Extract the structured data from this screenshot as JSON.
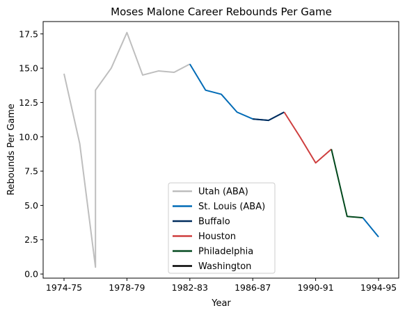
{
  "chart_data": {
    "type": "line",
    "title": "Moses Malone Career Rebounds Per Game",
    "xlabel": "Year",
    "ylabel": "Rebounds Per Game",
    "categories": [
      "1974-75",
      "1975-76",
      "1976-77",
      "1976-77",
      "1977-78",
      "1978-79",
      "1979-80",
      "1980-81",
      "1981-82",
      "1982-83",
      "1983-84",
      "1984-85",
      "1985-86",
      "1986-87",
      "1987-88",
      "1988-89",
      "1989-90",
      "1990-91",
      "1991-92",
      "1992-93",
      "1993-94",
      "1994-95"
    ],
    "x_ticks": [
      "1974-75",
      "1978-79",
      "1982-83",
      "1986-87",
      "1990-91",
      "1994-95"
    ],
    "ylim": [
      -0.3,
      18.4
    ],
    "y_ticks": [
      0.0,
      2.5,
      5.0,
      7.5,
      10.0,
      12.5,
      15.0,
      17.5
    ],
    "y_tick_labels": [
      "0.0",
      "2.5",
      "5.0",
      "7.5",
      "10.0",
      "12.5",
      "15.0",
      "17.5"
    ],
    "grid": false,
    "legend_placement": "lower-center",
    "series": [
      {
        "name": "Utah (ABA)",
        "color": "#bebebe",
        "points": [
          [
            "1974-75",
            14.6
          ],
          [
            "1975-76",
            9.5
          ],
          [
            "1976-77",
            0.5
          ],
          [
            "1976-77",
            13.4
          ],
          [
            "1977-78",
            15.0
          ],
          [
            "1978-79",
            17.6
          ],
          [
            "1979-80",
            14.5
          ],
          [
            "1980-81",
            14.8
          ],
          [
            "1981-82",
            14.7
          ],
          [
            "1982-83",
            15.3
          ]
        ]
      },
      {
        "name": "St. Louis (ABA)",
        "color": "#006bb6",
        "points": [
          [
            "1982-83",
            15.3
          ],
          [
            "1983-84",
            13.4
          ],
          [
            "1984-85",
            13.1
          ],
          [
            "1985-86",
            11.8
          ],
          [
            "1986-87",
            11.3
          ],
          [
            "1987-88",
            11.2
          ],
          [
            "1988-89",
            11.8
          ]
        ],
        "extra_points": [
          [
            "1993-94",
            4.1
          ],
          [
            "1994-95",
            2.7
          ]
        ]
      },
      {
        "name": "Buffalo",
        "color": "#002b5c",
        "points": [
          [
            "1986-87",
            11.3
          ],
          [
            "1987-88",
            11.2
          ],
          [
            "1988-89",
            11.8
          ]
        ]
      },
      {
        "name": "Houston",
        "color": "#ce3e3e",
        "points": [
          [
            "1988-89",
            11.8
          ],
          [
            "1989-90",
            10.0
          ],
          [
            "1990-91",
            8.1
          ],
          [
            "1991-92",
            9.1
          ]
        ]
      },
      {
        "name": "Philadelphia",
        "color": "#00471b",
        "points": [
          [
            "1991-92",
            9.1
          ],
          [
            "1992-93",
            4.2
          ],
          [
            "1993-94",
            4.1
          ]
        ]
      },
      {
        "name": "Washington",
        "color": "#000000",
        "points": []
      }
    ]
  }
}
